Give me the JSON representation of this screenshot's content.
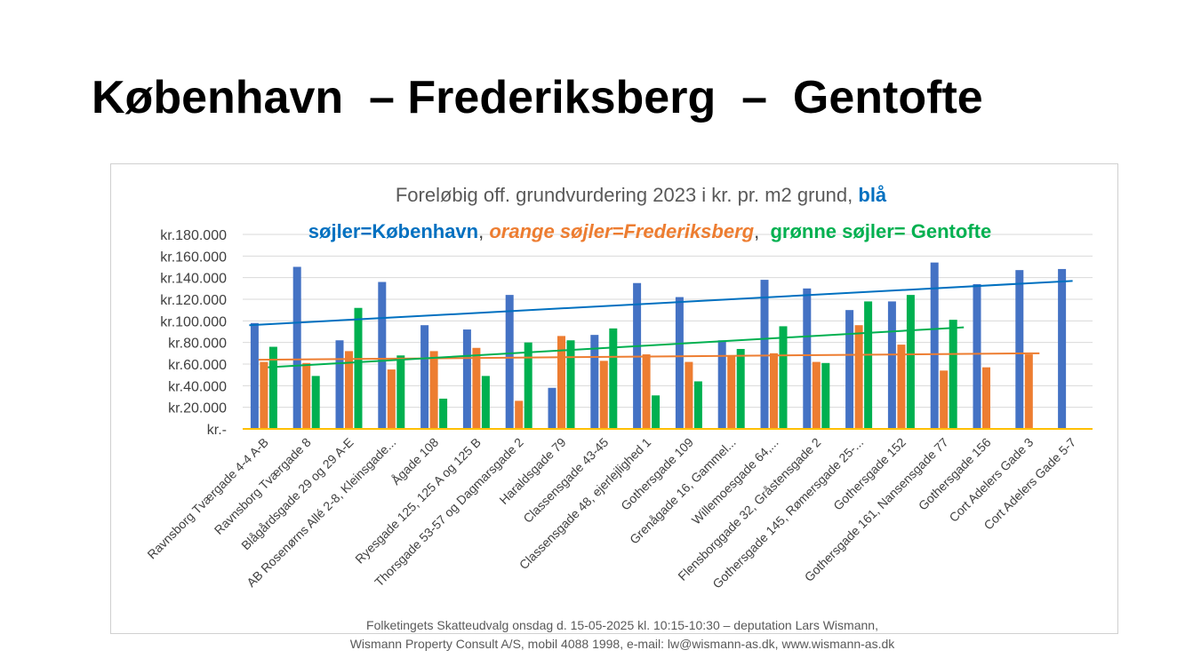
{
  "slide": {
    "title": "København  – Frederiksberg  –  Gentofte",
    "footer_line1": "Folketingets Skatteudvalg onsdag d. 15-05-2025 kl. 10:15-10:30 –  deputation Lars Wismann,",
    "footer_line2": "Wismann Property Consult A/S, mobil 4088 1998, e-mail: lw@wismann-as.dk, www.wismann-as.dk"
  },
  "colors": {
    "kobenhavn": "#4472c4",
    "frederiksberg": "#ed7d31",
    "gentofte": "#00b050",
    "trend_kobenhavn": "#0070c0",
    "trend_frederiksberg": "#ed7d31",
    "trend_gentofte": "#00b050",
    "axis_line": "#ffc000",
    "gridline": "#d9d9d9",
    "title_text": "#595959",
    "legend_blue": "#0070c0",
    "legend_orange": "#ed7d31",
    "legend_green": "#00b050"
  },
  "chart_data": {
    "type": "bar",
    "title_line1": "Foreløbig off. grundvurdering 2023 i kr. pr. m2 grund, ",
    "title_line1_blue": "blå",
    "title_line2_blue": "søjler=København",
    "title_sep1": ", ",
    "title_line2_orange": "orange søjler=Frederiksberg",
    "title_sep2": ",  ",
    "title_line2_green": "grønne søjler= Gentofte",
    "categories": [
      "Ravnsborg Tværgade 4-4 A-B",
      "Ravnsborg Tværgade 8",
      "Blågårdsgade 29 og 29 A-E",
      "AB Rosenørns Allé 2-8, Kleinsgade...",
      "Ågade 108",
      "Ryesgade 125, 125 A og 125 B",
      "Thorsgade 53-57 og Dagmarsgade 2",
      "Haraldsgade 79",
      "Classensgade 43-45",
      "Classensgade 48, ejerlejlighed 1",
      "Gothersgade 109",
      "Grenågade 16, Gammel...",
      "Willemoesgade 64,...",
      "Flensborggade 32, Gråstensgade 2",
      "Gothersgade 145, Rømersgade 25-...",
      "Gothersgade 152",
      "Gothersgade 161, Nansensgade 77",
      "Gothersgade 156",
      "Cort Adelers Gade 3",
      "Cort Adelers Gade 5-7"
    ],
    "series": [
      {
        "name": "København",
        "values": [
          98000,
          150000,
          82000,
          136000,
          96000,
          92000,
          124000,
          38000,
          87000,
          135000,
          122000,
          82000,
          138000,
          130000,
          110000,
          118000,
          154000,
          134000,
          147000,
          148000
        ]
      },
      {
        "name": "Frederiksberg",
        "values": [
          62000,
          61000,
          72000,
          55000,
          72000,
          75000,
          26000,
          86000,
          63000,
          69000,
          62000,
          68000,
          70000,
          62000,
          96000,
          78000,
          54000,
          57000,
          69000,
          null
        ]
      },
      {
        "name": "Gentofte",
        "values": [
          76000,
          49000,
          112000,
          68000,
          28000,
          49000,
          80000,
          82000,
          93000,
          31000,
          44000,
          74000,
          95000,
          61000,
          118000,
          124000,
          101000,
          null,
          null,
          null
        ]
      }
    ],
    "trendlines": [
      {
        "series": "København",
        "start": 96000,
        "end": 137000
      },
      {
        "series": "Frederiksberg",
        "start": 64000,
        "end": 70000
      },
      {
        "series": "Gentofte",
        "start": 57000,
        "end": 94000
      }
    ],
    "y_tick_labels": [
      "kr.-",
      "kr.20.000",
      "kr.40.000",
      "kr.60.000",
      "kr.80.000",
      "kr.100.000",
      "kr.120.000",
      "kr.140.000",
      "kr.160.000",
      "kr.180.000"
    ],
    "y_ticks": [
      0,
      20000,
      40000,
      60000,
      80000,
      100000,
      120000,
      140000,
      160000,
      180000
    ],
    "ylim": [
      0,
      180000
    ],
    "grid": true,
    "legend": "none"
  }
}
